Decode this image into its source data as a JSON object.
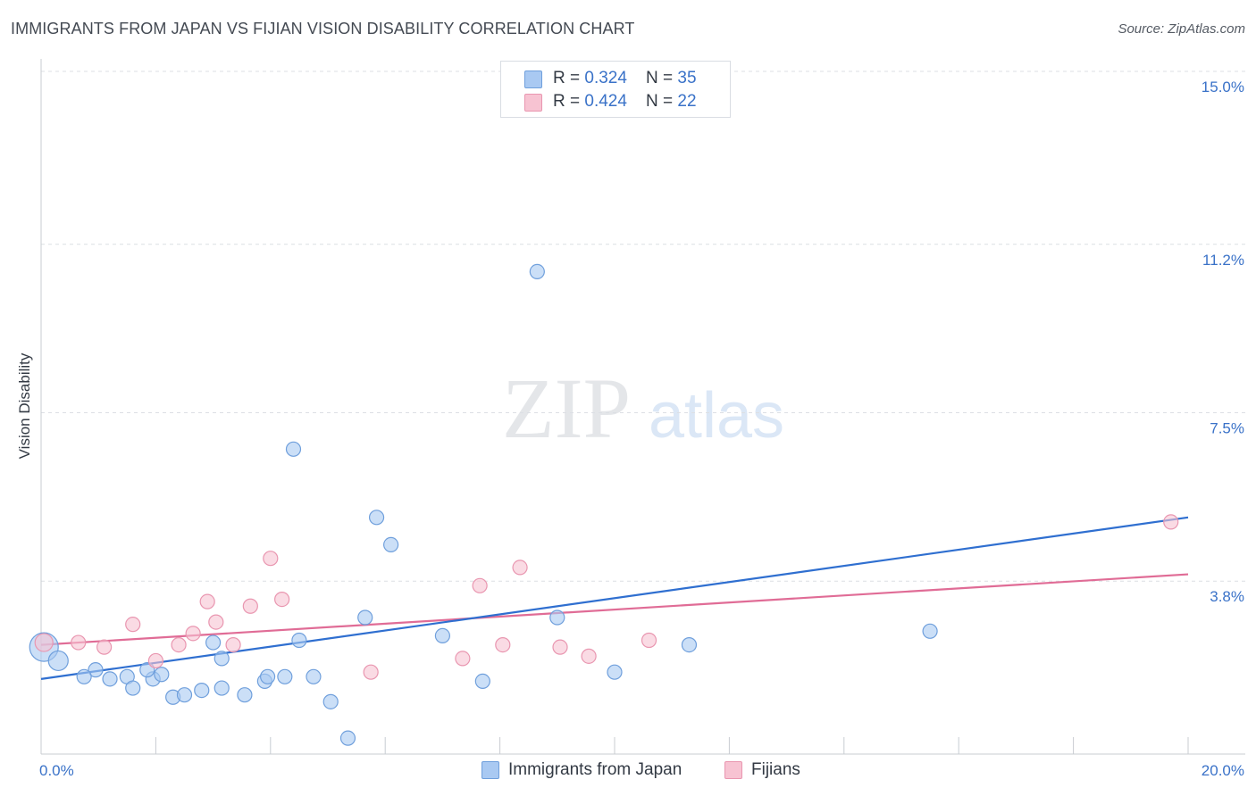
{
  "title": "IMMIGRANTS FROM JAPAN VS FIJIAN VISION DISABILITY CORRELATION CHART",
  "source": "Source: ZipAtlas.com",
  "watermark": {
    "zip": "ZIP",
    "atlas": "atlas"
  },
  "colors": {
    "blue_fill": "#a9c9f2",
    "blue_stroke": "#6f9fdc",
    "blue_line": "#2f6fd0",
    "pink_fill": "#f7c3d2",
    "pink_stroke": "#e996b0",
    "pink_line": "#e06c96",
    "axis_label": "#3a72c8",
    "grid": "#dcdfe4"
  },
  "legend_top": [
    {
      "r_label": "R = ",
      "r_value": "0.324",
      "n_label": "N = ",
      "n_value": "35"
    },
    {
      "r_label": "R = ",
      "r_value": "0.424",
      "n_label": "N = ",
      "n_value": "22"
    }
  ],
  "legend_bottom": [
    "Immigrants from Japan",
    "Fijians"
  ],
  "chart_data": {
    "type": "scatter",
    "title": "IMMIGRANTS FROM JAPAN VS FIJIAN VISION DISABILITY CORRELATION CHART",
    "xlabel": "",
    "ylabel": "Vision Disability",
    "xlim": [
      0,
      20
    ],
    "ylim": [
      0,
      15.5
    ],
    "x_tick_labels": [
      {
        "value": 0,
        "label": "0.0%"
      },
      {
        "value": 20,
        "label": "20.0%"
      }
    ],
    "y_tick_labels": [
      {
        "value": 3.8,
        "label": "3.8%"
      },
      {
        "value": 7.5,
        "label": "7.5%"
      },
      {
        "value": 11.2,
        "label": "11.2%"
      },
      {
        "value": 15.0,
        "label": "15.0%"
      }
    ],
    "series": [
      {
        "name": "Immigrants from Japan",
        "r": 0.324,
        "n": 35,
        "points": [
          [
            0.05,
            2.35
          ],
          [
            0.3,
            2.05
          ],
          [
            0.95,
            1.85
          ],
          [
            1.5,
            1.7
          ],
          [
            1.95,
            1.65
          ],
          [
            1.2,
            1.65
          ],
          [
            0.75,
            1.7
          ],
          [
            1.6,
            1.45
          ],
          [
            1.85,
            1.85
          ],
          [
            2.1,
            1.75
          ],
          [
            2.3,
            1.25
          ],
          [
            2.5,
            1.3
          ],
          [
            2.8,
            1.4
          ],
          [
            3.0,
            2.45
          ],
          [
            3.15,
            2.1
          ],
          [
            3.15,
            1.45
          ],
          [
            3.55,
            1.3
          ],
          [
            3.9,
            1.6
          ],
          [
            3.95,
            1.7
          ],
          [
            4.25,
            1.7
          ],
          [
            4.4,
            6.7
          ],
          [
            4.5,
            2.5
          ],
          [
            4.75,
            1.7
          ],
          [
            5.05,
            1.15
          ],
          [
            5.35,
            0.35
          ],
          [
            5.65,
            3.0
          ],
          [
            5.85,
            5.2
          ],
          [
            6.1,
            4.6
          ],
          [
            7.0,
            2.6
          ],
          [
            7.7,
            1.6
          ],
          [
            8.65,
            10.6
          ],
          [
            9.0,
            3.0
          ],
          [
            10.0,
            1.8
          ],
          [
            11.3,
            2.4
          ],
          [
            15.5,
            2.7
          ]
        ],
        "trend": [
          [
            0,
            1.65
          ],
          [
            20,
            5.2
          ]
        ]
      },
      {
        "name": "Fijians",
        "r": 0.424,
        "n": 22,
        "points": [
          [
            0.05,
            2.45
          ],
          [
            0.65,
            2.45
          ],
          [
            1.1,
            2.35
          ],
          [
            1.6,
            2.85
          ],
          [
            2.0,
            2.05
          ],
          [
            2.4,
            2.4
          ],
          [
            2.65,
            2.65
          ],
          [
            2.9,
            3.35
          ],
          [
            3.05,
            2.9
          ],
          [
            3.35,
            2.4
          ],
          [
            3.65,
            3.25
          ],
          [
            4.0,
            4.3
          ],
          [
            4.2,
            3.4
          ],
          [
            5.75,
            1.8
          ],
          [
            7.35,
            2.1
          ],
          [
            7.65,
            3.7
          ],
          [
            8.05,
            2.4
          ],
          [
            8.35,
            4.1
          ],
          [
            9.05,
            2.35
          ],
          [
            9.55,
            2.15
          ],
          [
            10.6,
            2.5
          ],
          [
            19.7,
            5.1
          ]
        ],
        "trend": [
          [
            0,
            2.4
          ],
          [
            20,
            3.95
          ]
        ]
      }
    ]
  }
}
